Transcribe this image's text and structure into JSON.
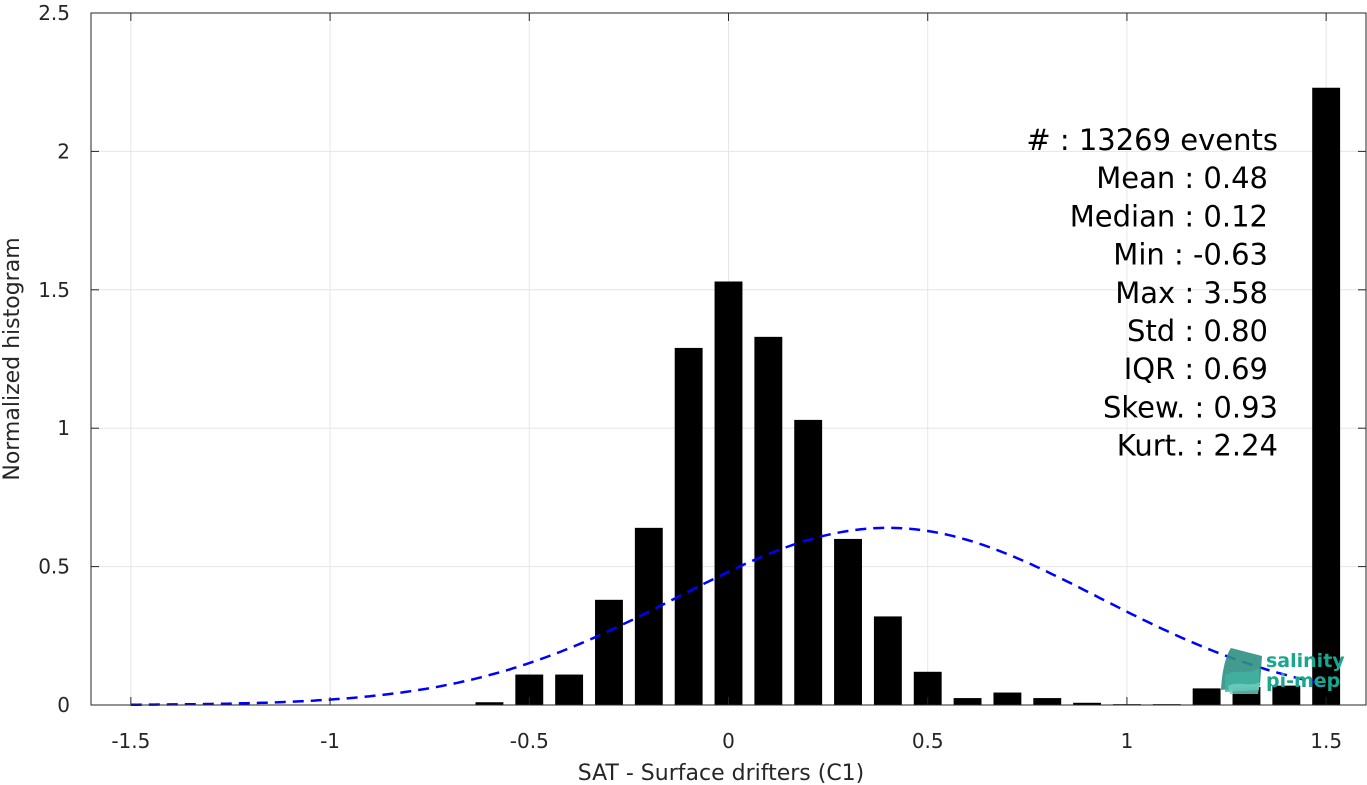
{
  "chart_data": {
    "type": "bar",
    "xlabel": "SAT - Surface drifters (C1)",
    "ylabel": "Normalized histogram",
    "xlim": [
      -1.6,
      1.6
    ],
    "ylim": [
      0,
      2.5
    ],
    "xticks": [
      "-1.5",
      "-1",
      "-0.5",
      "0",
      "0.5",
      "1",
      "1.5"
    ],
    "yticks": [
      "0",
      "0.5",
      "1",
      "1.5",
      "2",
      "2.5"
    ],
    "grid": true,
    "bin_centers": [
      -0.6,
      -0.5,
      -0.4,
      -0.3,
      -0.2,
      -0.1,
      0.0,
      0.1,
      0.2,
      0.3,
      0.4,
      0.5,
      0.6,
      0.7,
      0.8,
      0.9,
      1.0,
      1.1,
      1.2,
      1.3,
      1.4,
      1.5
    ],
    "values": [
      0.01,
      0.11,
      0.11,
      0.38,
      0.64,
      1.29,
      1.53,
      1.33,
      1.03,
      0.6,
      0.32,
      0.12,
      0.025,
      0.045,
      0.025,
      0.008,
      0.003,
      0.003,
      0.06,
      0.065,
      0.07,
      2.23
    ],
    "bar_width": 0.07,
    "bar_color": "#000000",
    "gaussian_fit": {
      "mean": 0.4,
      "peak": 0.64,
      "std": 0.53,
      "color": "#0000ff",
      "style": "dashed"
    },
    "stats": [
      {
        "label": "#  : 13269 events"
      },
      {
        "label": "Mean : 0.48"
      },
      {
        "label": "Median : 0.12"
      },
      {
        "label": "Min : -0.63"
      },
      {
        "label": "Max : 3.58"
      },
      {
        "label": "Std : 0.80"
      },
      {
        "label": "IQR : 0.69"
      },
      {
        "label": "Skew. : 0.93"
      },
      {
        "label": "Kurt. : 2.24"
      }
    ]
  },
  "logo": {
    "line1": "salinity",
    "line2": "pi-mep"
  }
}
